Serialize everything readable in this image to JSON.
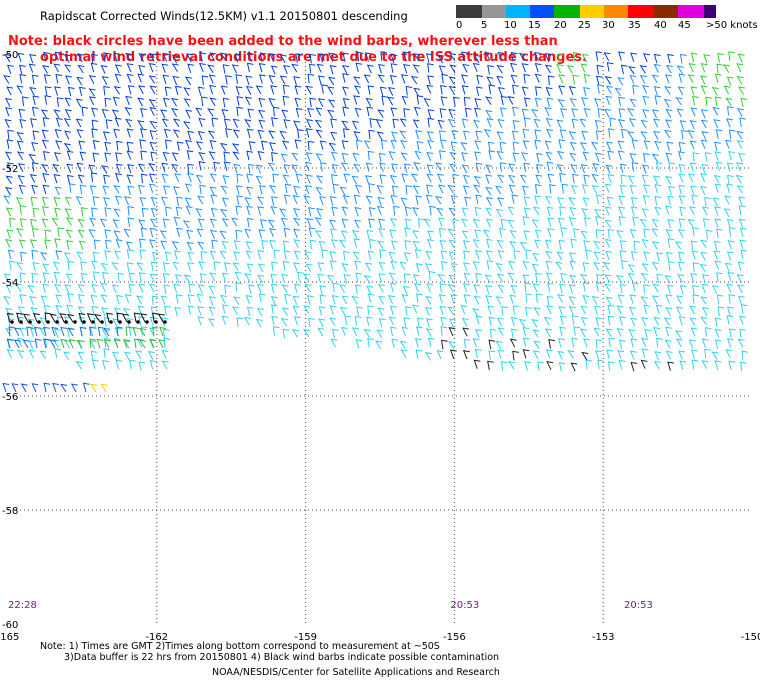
{
  "title": "Rapidscat Corrected Winds(12.5KM) v1.1 20150801 descending",
  "note_line1": "Note: black circles have been added to the wind barbs, wherever less than",
  "note_line2": "optimal wind retrieval conditions are met due to the ISS attitude changes.",
  "legend": {
    "labels": [
      "0",
      "5",
      "10",
      "15",
      "20",
      "25",
      "30",
      "35",
      "40",
      "45",
      ">50 knots"
    ],
    "colors": [
      "#3c3c3c",
      "#969696",
      "#00b4ff",
      "#0050ff",
      "#00b400",
      "#ffcc00",
      "#ff8800",
      "#ff0000",
      "#8b2c00",
      "#e000e0",
      "#40007a"
    ]
  },
  "footer": {
    "line1": "Note: 1) Times are GMT 2)Times along bottom correspond to measurement at ~50S",
    "line2": "3)Data buffer is 22 hrs from 20150801 4) Black wind barbs indicate possible contamination",
    "credit": "NOAA/NESDIS/Center for Satellite Applications and Research"
  },
  "chart_data": {
    "type": "map-wind-barbs",
    "xlim": [
      -165,
      -150
    ],
    "ylim": [
      -60,
      -50
    ],
    "x_ticks": [
      "-165",
      "-162",
      "-159",
      "-156",
      "-153",
      "-150"
    ],
    "y_ticks": [
      "-50",
      "-52",
      "-54",
      "-56",
      "-58",
      "-60"
    ],
    "times": [
      {
        "lon": -165,
        "label": "22:28"
      },
      {
        "lon": -156,
        "label": "20:53"
      },
      {
        "lon": -152.5,
        "label": "20:53"
      }
    ],
    "grid": true
  }
}
